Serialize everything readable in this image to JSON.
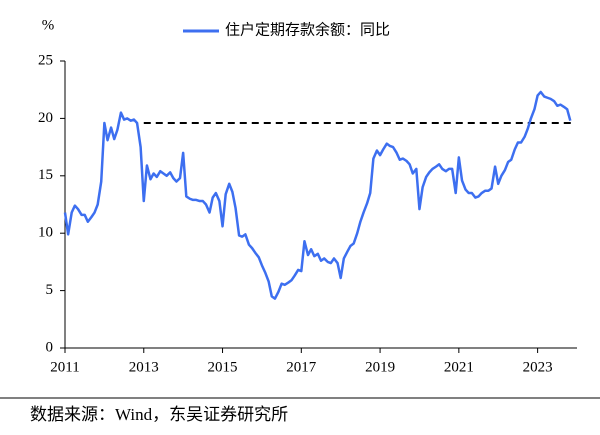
{
  "chart_data": {
    "type": "line",
    "y_unit_label": "%",
    "source": "数据来源：Wind，东吴证券研究所",
    "xlim": [
      2011,
      2024
    ],
    "xticks": [
      2011,
      2013,
      2015,
      2017,
      2019,
      2021,
      2023
    ],
    "ylim": [
      0,
      25
    ],
    "yticks": [
      0,
      5,
      10,
      15,
      20,
      25
    ],
    "grid": false,
    "reference_line": {
      "value": 19.6,
      "x_start": 2013,
      "x_end": 2023.92,
      "color": "#000000"
    },
    "x": [
      2011.0,
      2011.08,
      2011.17,
      2011.25,
      2011.33,
      2011.42,
      2011.5,
      2011.58,
      2011.67,
      2011.75,
      2011.83,
      2011.92,
      2012.0,
      2012.08,
      2012.17,
      2012.25,
      2012.33,
      2012.42,
      2012.5,
      2012.58,
      2012.67,
      2012.75,
      2012.83,
      2012.92,
      2013.0,
      2013.08,
      2013.17,
      2013.25,
      2013.33,
      2013.42,
      2013.5,
      2013.58,
      2013.67,
      2013.75,
      2013.83,
      2013.92,
      2014.0,
      2014.08,
      2014.17,
      2014.25,
      2014.33,
      2014.42,
      2014.5,
      2014.58,
      2014.67,
      2014.75,
      2014.83,
      2014.92,
      2015.0,
      2015.08,
      2015.17,
      2015.25,
      2015.33,
      2015.42,
      2015.5,
      2015.58,
      2015.67,
      2015.75,
      2015.83,
      2015.92,
      2016.0,
      2016.08,
      2016.17,
      2016.25,
      2016.33,
      2016.42,
      2016.5,
      2016.58,
      2016.67,
      2016.75,
      2016.83,
      2016.92,
      2017.0,
      2017.08,
      2017.17,
      2017.25,
      2017.33,
      2017.42,
      2017.5,
      2017.58,
      2017.67,
      2017.75,
      2017.83,
      2017.92,
      2018.0,
      2018.08,
      2018.17,
      2018.25,
      2018.33,
      2018.42,
      2018.5,
      2018.58,
      2018.67,
      2018.75,
      2018.83,
      2018.92,
      2019.0,
      2019.08,
      2019.17,
      2019.25,
      2019.33,
      2019.42,
      2019.5,
      2019.58,
      2019.67,
      2019.75,
      2019.83,
      2019.92,
      2020.0,
      2020.08,
      2020.17,
      2020.25,
      2020.33,
      2020.42,
      2020.5,
      2020.58,
      2020.67,
      2020.75,
      2020.83,
      2020.92,
      2021.0,
      2021.08,
      2021.17,
      2021.25,
      2021.33,
      2021.42,
      2021.5,
      2021.58,
      2021.67,
      2021.75,
      2021.83,
      2021.92,
      2022.0,
      2022.08,
      2022.17,
      2022.25,
      2022.33,
      2022.42,
      2022.5,
      2022.58,
      2022.67,
      2022.75,
      2022.83,
      2022.92,
      2023.0,
      2023.08,
      2023.17,
      2023.25,
      2023.33,
      2023.42,
      2023.5,
      2023.58,
      2023.67,
      2023.75,
      2023.83
    ],
    "series": [
      {
        "name": "住户定期存款余额：同比",
        "color": "#3d6ff0",
        "values": [
          11.8,
          9.9,
          11.8,
          12.4,
          12.1,
          11.6,
          11.6,
          11.0,
          11.4,
          11.8,
          12.5,
          14.5,
          19.6,
          18.1,
          19.2,
          18.2,
          19.0,
          20.5,
          19.9,
          20.0,
          19.8,
          19.9,
          19.6,
          17.5,
          12.8,
          15.9,
          14.7,
          15.2,
          14.9,
          15.4,
          15.2,
          15.0,
          15.3,
          14.8,
          14.5,
          14.8,
          17.0,
          13.2,
          13.0,
          12.9,
          12.9,
          12.8,
          12.8,
          12.5,
          11.8,
          13.1,
          13.5,
          12.8,
          10.6,
          13.4,
          14.3,
          13.6,
          12.2,
          9.8,
          9.7,
          9.9,
          9.0,
          8.7,
          8.3,
          7.9,
          7.2,
          6.6,
          5.8,
          4.5,
          4.3,
          4.9,
          5.6,
          5.5,
          5.7,
          5.9,
          6.3,
          6.8,
          6.7,
          9.3,
          8.1,
          8.6,
          8.0,
          8.2,
          7.6,
          7.8,
          7.5,
          7.4,
          7.8,
          7.4,
          6.1,
          7.8,
          8.4,
          8.9,
          9.1,
          10.0,
          11.0,
          11.8,
          12.6,
          13.5,
          16.5,
          17.2,
          16.8,
          17.3,
          17.8,
          17.6,
          17.5,
          17.0,
          16.4,
          16.5,
          16.3,
          16.0,
          15.2,
          15.6,
          12.1,
          14.0,
          14.9,
          15.3,
          15.6,
          15.8,
          16.0,
          15.6,
          15.4,
          15.6,
          15.6,
          13.5,
          16.6,
          14.6,
          13.8,
          13.5,
          13.5,
          13.1,
          13.2,
          13.5,
          13.7,
          13.7,
          13.9,
          15.8,
          14.3,
          15.0,
          15.5,
          16.2,
          16.4,
          17.3,
          17.9,
          17.9,
          18.4,
          19.1,
          20.0,
          20.8,
          22.0,
          22.3,
          21.9,
          21.8,
          21.7,
          21.5,
          21.1,
          21.2,
          21.0,
          20.8,
          19.8
        ]
      }
    ]
  }
}
